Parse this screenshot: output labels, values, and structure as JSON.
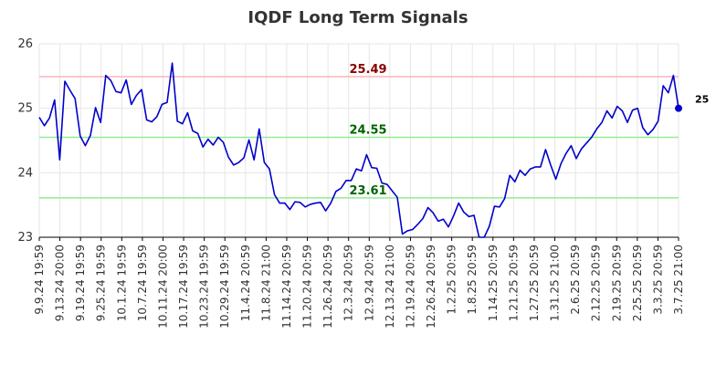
{
  "chart_data": {
    "type": "line",
    "title": "IQDF Long Term Signals",
    "xlabel": "",
    "ylabel": "",
    "ylim": [
      23,
      26
    ],
    "yticks": [
      23,
      24,
      25,
      26
    ],
    "grid": true,
    "x_tick_labels": [
      "9.9.24 19:59",
      "9.13.24 20:00",
      "9.19.24 19:59",
      "9.25.24 19:59",
      "10.1.24 19:59",
      "10.7.24 19:59",
      "10.11.24 20:00",
      "10.17.24 19:59",
      "10.23.24 19:59",
      "10.29.24 19:59",
      "11.4.24 20:59",
      "11.8.24 21:00",
      "11.14.24 20:59",
      "11.20.24 20:59",
      "11.26.24 20:59",
      "12.3.24 20:59",
      "12.9.24 20:59",
      "12.13.24 21:00",
      "12.19.24 20:59",
      "12.26.24 20:59",
      "1.2.25 20:59",
      "1.8.25 20:59",
      "1.14.25 20:59",
      "1.21.25 20:59",
      "1.27.25 20:59",
      "1.31.25 21:00",
      "2.6.25 20:59",
      "2.12.25 20:59",
      "2.19.25 20:59",
      "2.25.25 20:59",
      "3.3.25 20:59",
      "3.7.25 21:00"
    ],
    "reference_lines": [
      {
        "value": 25.49,
        "label": "25.49",
        "line_color": "#ffb3ba",
        "label_color": "#8b0000"
      },
      {
        "value": 24.55,
        "label": "24.55",
        "line_color": "#90ee90",
        "label_color": "#006400"
      },
      {
        "value": 23.61,
        "label": "23.61",
        "line_color": "#90ee90",
        "label_color": "#006400"
      }
    ],
    "series": [
      {
        "color": "#0000cc",
        "values": [
          24.86,
          24.73,
          24.85,
          25.13,
          24.2,
          25.42,
          25.28,
          25.15,
          24.57,
          24.42,
          24.58,
          25.01,
          24.78,
          25.51,
          25.43,
          25.26,
          25.24,
          25.44,
          25.06,
          25.2,
          25.29,
          24.82,
          24.79,
          24.87,
          25.06,
          25.09,
          25.7,
          24.8,
          24.76,
          24.93,
          24.65,
          24.61,
          24.4,
          24.52,
          24.43,
          24.55,
          24.47,
          24.24,
          24.12,
          24.16,
          24.23,
          24.51,
          24.2,
          24.68,
          24.16,
          24.06,
          23.66,
          23.53,
          23.53,
          23.43,
          23.55,
          23.54,
          23.47,
          23.51,
          23.53,
          23.54,
          23.41,
          23.53,
          23.71,
          23.76,
          23.88,
          23.88,
          24.06,
          24.03,
          24.28,
          24.08,
          24.07,
          23.84,
          23.82,
          23.72,
          23.62,
          23.05,
          23.1,
          23.12,
          23.2,
          23.29,
          23.46,
          23.38,
          23.25,
          23.28,
          23.16,
          23.33,
          23.53,
          23.39,
          23.32,
          23.34,
          23.0,
          23.0,
          23.17,
          23.48,
          23.47,
          23.6,
          23.96,
          23.86,
          24.04,
          23.96,
          24.06,
          24.09,
          24.09,
          24.36,
          24.12,
          23.9,
          24.14,
          24.3,
          24.42,
          24.22,
          24.37,
          24.46,
          24.55,
          24.68,
          24.78,
          24.96,
          24.85,
          25.03,
          24.96,
          24.78,
          24.97,
          25.0,
          24.7,
          24.59,
          24.67,
          24.8,
          25.35,
          25.24,
          25.51,
          25.0
        ],
        "last_value_label": "25"
      }
    ]
  }
}
